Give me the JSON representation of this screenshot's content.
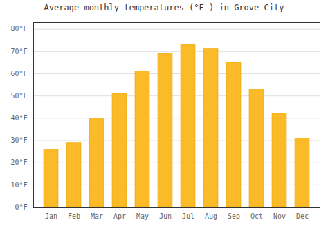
{
  "chart_data": {
    "type": "bar",
    "title": "Average monthly temperatures (°F ) in Grove City",
    "categories": [
      "Jan",
      "Feb",
      "Mar",
      "Apr",
      "May",
      "Jun",
      "Jul",
      "Aug",
      "Sep",
      "Oct",
      "Nov",
      "Dec"
    ],
    "values": [
      26,
      29,
      40,
      51,
      61,
      69,
      73,
      71,
      65,
      53,
      42,
      31
    ],
    "color": "#FBBA28",
    "ylim": [
      0,
      83
    ],
    "yticks": [
      {
        "value": 0,
        "label": "0°F"
      },
      {
        "value": 10,
        "label": "10°F"
      },
      {
        "value": 20,
        "label": "20°F"
      },
      {
        "value": 30,
        "label": "30°F"
      },
      {
        "value": 40,
        "label": "40°F"
      },
      {
        "value": 50,
        "label": "50°F"
      },
      {
        "value": 60,
        "label": "60°F"
      },
      {
        "value": 70,
        "label": "70°F"
      },
      {
        "value": 80,
        "label": "80°F"
      }
    ],
    "grid": true
  }
}
